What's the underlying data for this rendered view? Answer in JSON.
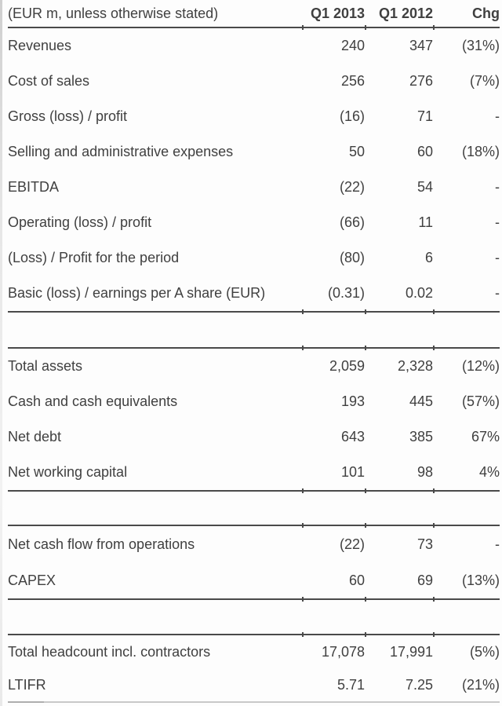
{
  "colors": {
    "text": "#404040",
    "rule": "#4a4a4a",
    "faint_rule": "#c9c9c9",
    "background": "#fdfdfd"
  },
  "table": {
    "unit_note": "(EUR m, unless otherwise stated)",
    "columns": [
      "Q1 2013",
      "Q1 2012",
      "Chg"
    ],
    "sections": [
      {
        "name": "income-statement",
        "rows": [
          {
            "label": "Revenues",
            "q1_2013": "240",
            "q1_2012": "347",
            "chg": "(31%)"
          },
          {
            "label": "Cost of sales",
            "q1_2013": "256",
            "q1_2012": "276",
            "chg": "(7%)"
          },
          {
            "label": "Gross (loss) / profit",
            "q1_2013": "(16)",
            "q1_2012": "71",
            "chg": "-"
          },
          {
            "label": "Selling and administrative expenses",
            "q1_2013": "50",
            "q1_2012": "60",
            "chg": "(18%)"
          },
          {
            "label": "EBITDA",
            "q1_2013": "(22)",
            "q1_2012": "54",
            "chg": "-"
          },
          {
            "label": "Operating (loss) / profit",
            "q1_2013": "(66)",
            "q1_2012": "11",
            "chg": "-"
          },
          {
            "label": "(Loss) / Profit for the period",
            "q1_2013": "(80)",
            "q1_2012": "6",
            "chg": "-"
          },
          {
            "label": "Basic (loss) / earnings per A share (EUR)",
            "q1_2013": "(0.31)",
            "q1_2012": "0.02",
            "chg": "-"
          }
        ]
      },
      {
        "name": "balance-sheet",
        "rows": [
          {
            "label": "Total assets",
            "q1_2013": "2,059",
            "q1_2012": "2,328",
            "chg": "(12%)"
          },
          {
            "label": "Cash and cash equivalents",
            "q1_2013": "193",
            "q1_2012": "445",
            "chg": "(57%)"
          },
          {
            "label": "Net debt",
            "q1_2013": "643",
            "q1_2012": "385",
            "chg": "67%"
          },
          {
            "label": "Net working capital",
            "q1_2013": "101",
            "q1_2012": "98",
            "chg": "4%"
          }
        ]
      },
      {
        "name": "cash-flow",
        "rows": [
          {
            "label": "Net cash flow from operations",
            "q1_2013": "(22)",
            "q1_2012": "73",
            "chg": "-"
          },
          {
            "label": "CAPEX",
            "q1_2013": "60",
            "q1_2012": "69",
            "chg": "(13%)"
          }
        ]
      },
      {
        "name": "other-metrics",
        "rows": [
          {
            "label": "Total headcount incl. contractors",
            "q1_2013": "17,078",
            "q1_2012": "17,991",
            "chg": "(5%)"
          },
          {
            "label": "LTIFR",
            "q1_2013": "5.71",
            "q1_2012": "7.25",
            "chg": "(21%)"
          }
        ]
      }
    ]
  }
}
